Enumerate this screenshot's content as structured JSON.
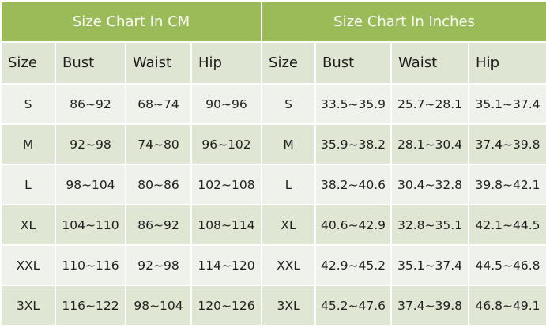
{
  "colors": {
    "title_bg": "#9bbb59",
    "header_bg": "#dfe5d3",
    "row_light": "#eff2ea",
    "row_dark": "#e0e6d4"
  },
  "cm": {
    "title": "Size Chart In CM",
    "headers": [
      "Size",
      "Bust",
      "Waist",
      "Hip"
    ],
    "rows": [
      [
        "S",
        "86~92",
        "68~74",
        "90~96"
      ],
      [
        "M",
        "92~98",
        "74~80",
        "96~102"
      ],
      [
        "L",
        "98~104",
        "80~86",
        "102~108"
      ],
      [
        "XL",
        "104~110",
        "86~92",
        "108~114"
      ],
      [
        "XXL",
        "110~116",
        "92~98",
        "114~120"
      ],
      [
        "3XL",
        "116~122",
        "98~104",
        "120~126"
      ]
    ]
  },
  "inches": {
    "title": "Size Chart In Inches",
    "headers": [
      "Size",
      "Bust",
      "Waist",
      "Hip"
    ],
    "rows": [
      [
        "S",
        "33.5~35.9",
        "25.7~28.1",
        "35.1~37.4"
      ],
      [
        "M",
        "35.9~38.2",
        "28.1~30.4",
        "37.4~39.8"
      ],
      [
        "L",
        "38.2~40.6",
        "30.4~32.8",
        "39.8~42.1"
      ],
      [
        "XL",
        "40.6~42.9",
        "32.8~35.1",
        "42.1~44.5"
      ],
      [
        "XXL",
        "42.9~45.2",
        "35.1~37.4",
        "44.5~46.8"
      ],
      [
        "3XL",
        "45.2~47.6",
        "37.4~39.8",
        "46.8~49.1"
      ]
    ]
  }
}
